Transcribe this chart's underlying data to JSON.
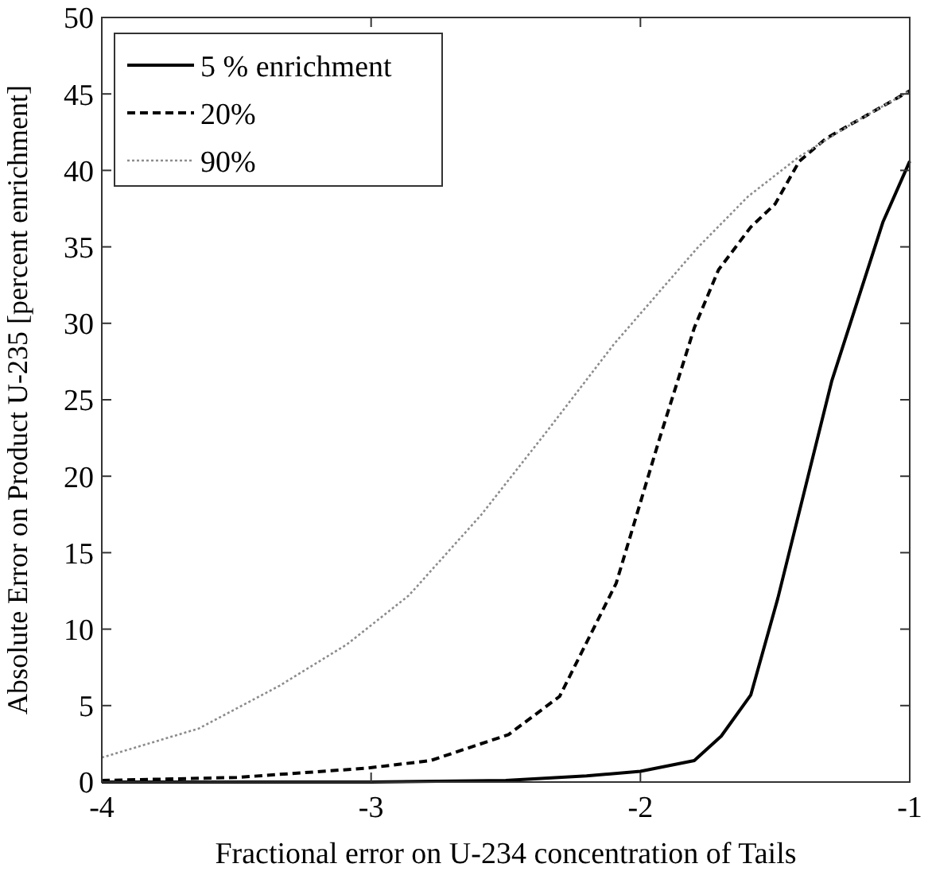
{
  "chart_data": {
    "type": "line",
    "xlabel": "Fractional error on U-234 concentration of Tails",
    "ylabel": "Absolute Error on Product U-235 [percent enrichment]",
    "xlim": [
      -4,
      -1
    ],
    "xticks": [
      -4,
      -3,
      -2,
      -1
    ],
    "ylim": [
      0,
      50
    ],
    "yticks": [
      0,
      5,
      10,
      15,
      20,
      25,
      30,
      35,
      40,
      45,
      50
    ],
    "grid": false,
    "legend": "top left",
    "series": [
      {
        "name": "5 % enrichment",
        "color": "#000000",
        "line_style": "solid",
        "x": [
          -4,
          -3,
          -2.5,
          -2.2,
          -2.0,
          -1.8,
          -1.7,
          -1.59,
          -1.49,
          -1.29,
          -1.1,
          -1.0
        ],
        "values": [
          0,
          0,
          0.1,
          0.4,
          0.7,
          1.4,
          3.0,
          5.7,
          12.0,
          26.2,
          36.6,
          40.6
        ]
      },
      {
        "name": "20%",
        "color": "#000000",
        "line_style": "dashed",
        "x": [
          -4,
          -3.5,
          -3.02,
          -2.78,
          -2.49,
          -2.3,
          -2.09,
          -1.93,
          -1.8,
          -1.71,
          -1.59,
          -1.5,
          -1.41,
          -1.31,
          -1.21,
          -1.0
        ],
        "values": [
          0.1,
          0.3,
          0.9,
          1.4,
          3.1,
          5.6,
          13.0,
          22.4,
          29.7,
          33.5,
          36.3,
          37.8,
          40.6,
          42.1,
          43.1,
          45.2
        ]
      },
      {
        "name": "90%",
        "color": "#8c8c8c",
        "line_style": "dotted",
        "x": [
          -4,
          -3.64,
          -3.34,
          -3.09,
          -2.86,
          -2.59,
          -2.34,
          -2.1,
          -1.79,
          -1.6,
          -1.41,
          -1.21,
          -1.0
        ],
        "values": [
          1.6,
          3.5,
          6.3,
          9.0,
          12.2,
          17.5,
          23.1,
          28.6,
          34.9,
          38.3,
          40.9,
          43.1,
          45.2
        ]
      }
    ]
  }
}
